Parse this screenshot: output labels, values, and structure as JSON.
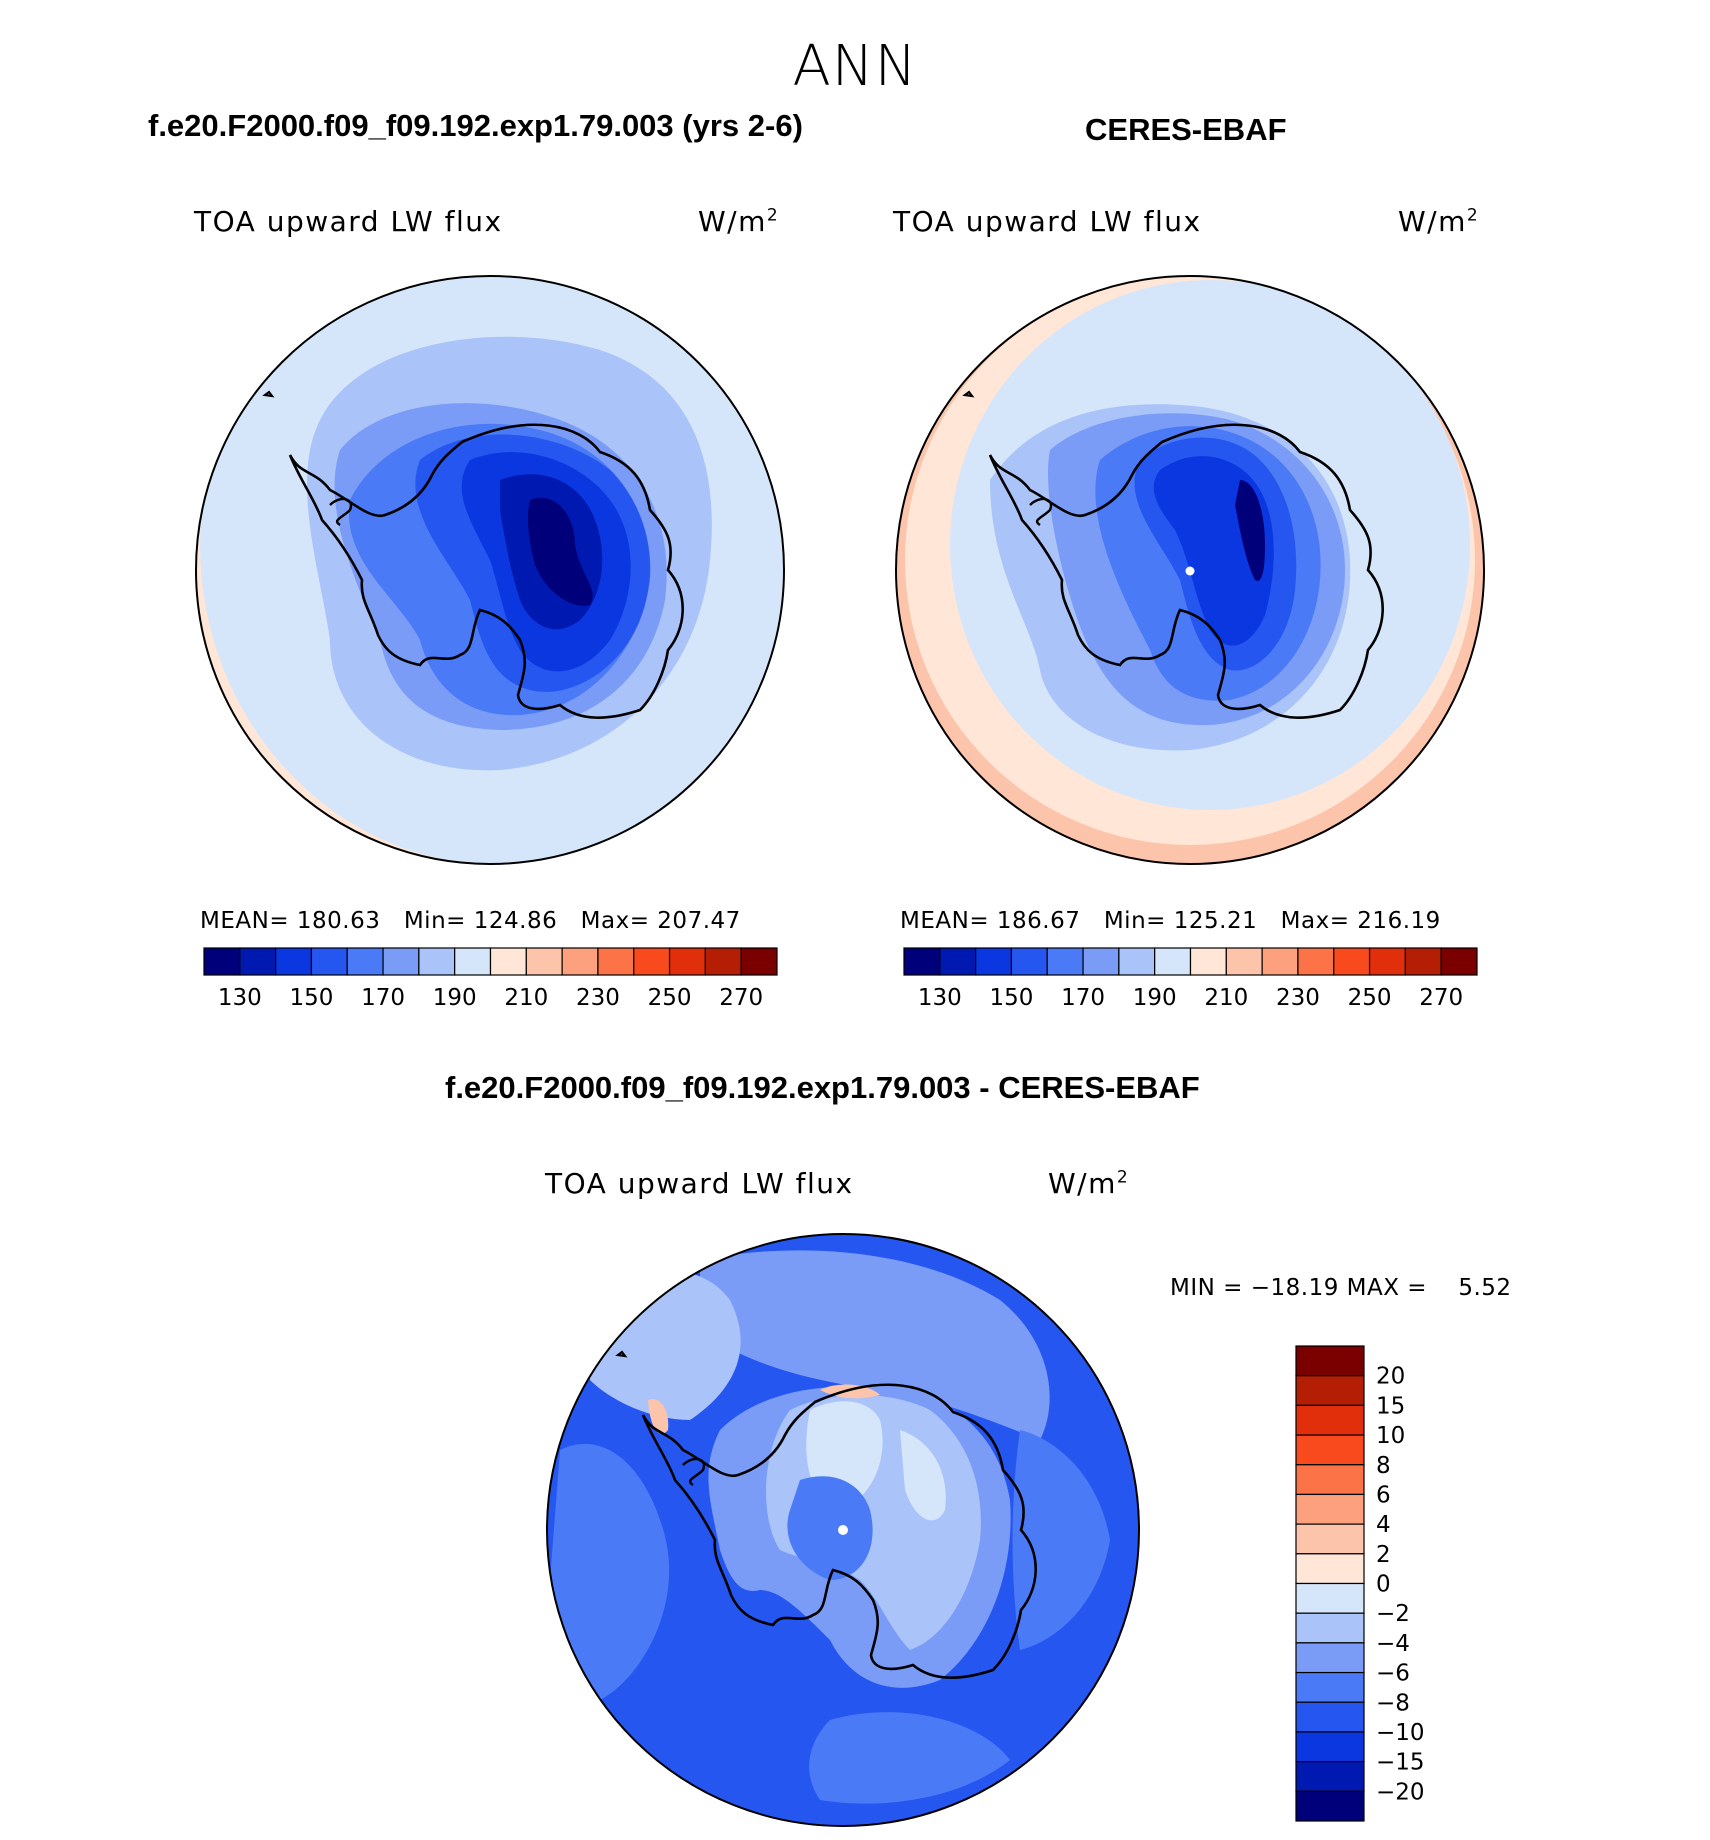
{
  "figure": {
    "main_title": "ANN"
  },
  "panels": [
    {
      "id": "model",
      "case_title": "f.e20.F2000.f09_f09.192.exp1.79.003 (yrs 2-6)",
      "variable": "TOA upward LW flux",
      "units_base": "W/m",
      "units_exp": "2",
      "stats": {
        "mean_label": "MEAN=",
        "mean": "180.63",
        "min_label": "Min=",
        "min": "124.86",
        "max_label": "Max=",
        "max": "207.47"
      }
    },
    {
      "id": "obs",
      "case_title": "CERES-EBAF",
      "variable": "TOA upward LW flux",
      "units_base": "W/m",
      "units_exp": "2",
      "stats": {
        "mean_label": "MEAN=",
        "mean": "186.67",
        "min_label": "Min=",
        "min": "125.21",
        "max_label": "Max=",
        "max": "216.19"
      }
    },
    {
      "id": "diff",
      "case_title": "f.e20.F2000.f09_f09.192.exp1.79.003 - CERES-EBAF",
      "variable": "TOA upward LW flux",
      "units_base": "W/m",
      "units_exp": "2",
      "stats_text": "MIN = −18.19 MAX =    5.52"
    }
  ],
  "chart_data": [
    {
      "type": "heatmap",
      "name": "model-field",
      "projection": "south-polar-stereographic",
      "units": "W/m2",
      "contour_levels": [
        120,
        130,
        140,
        150,
        160,
        170,
        180,
        190,
        200,
        210,
        220,
        230,
        240,
        250,
        260,
        270,
        280
      ],
      "colorbar_ticks": [
        "130",
        "150",
        "170",
        "190",
        "210",
        "230",
        "250",
        "270"
      ],
      "colors": [
        "#00007a",
        "#0019b0",
        "#0a37e0",
        "#2556f0",
        "#4a7af5",
        "#7a9cf7",
        "#aac3f9",
        "#d5e6fb",
        "#ffe6d6",
        "#fdc4ac",
        "#fca07e",
        "#fb7346",
        "#f84a1c",
        "#e12e0b",
        "#b41e05",
        "#7a0000"
      ],
      "mean": 180.63,
      "min": 124.86,
      "max": 207.47
    },
    {
      "type": "heatmap",
      "name": "obs-field",
      "projection": "south-polar-stereographic",
      "units": "W/m2",
      "contour_levels": [
        120,
        130,
        140,
        150,
        160,
        170,
        180,
        190,
        200,
        210,
        220,
        230,
        240,
        250,
        260,
        270,
        280
      ],
      "colorbar_ticks": [
        "130",
        "150",
        "170",
        "190",
        "210",
        "230",
        "250",
        "270"
      ],
      "colors": [
        "#00007a",
        "#0019b0",
        "#0a37e0",
        "#2556f0",
        "#4a7af5",
        "#7a9cf7",
        "#aac3f9",
        "#d5e6fb",
        "#ffe6d6",
        "#fdc4ac",
        "#fca07e",
        "#fb7346",
        "#f84a1c",
        "#e12e0b",
        "#b41e05",
        "#7a0000"
      ],
      "mean": 186.67,
      "min": 125.21,
      "max": 216.19
    },
    {
      "type": "heatmap",
      "name": "difference-field",
      "projection": "south-polar-stereographic",
      "units": "W/m2",
      "colorbar_ticks": [
        "20",
        "15",
        "10",
        "8",
        "6",
        "4",
        "2",
        "0",
        "−2",
        "−4",
        "−6",
        "−8",
        "−10",
        "−15",
        "−20"
      ],
      "colors": [
        "#7a0000",
        "#b41e05",
        "#e12e0b",
        "#f84a1c",
        "#fb7346",
        "#fca07e",
        "#fdc4ac",
        "#ffe6d6",
        "#d5e6fb",
        "#aac3f9",
        "#7a9cf7",
        "#4a7af5",
        "#2556f0",
        "#0a37e0",
        "#0019b0",
        "#00007a"
      ],
      "min": -18.19,
      "max": 5.52
    }
  ]
}
